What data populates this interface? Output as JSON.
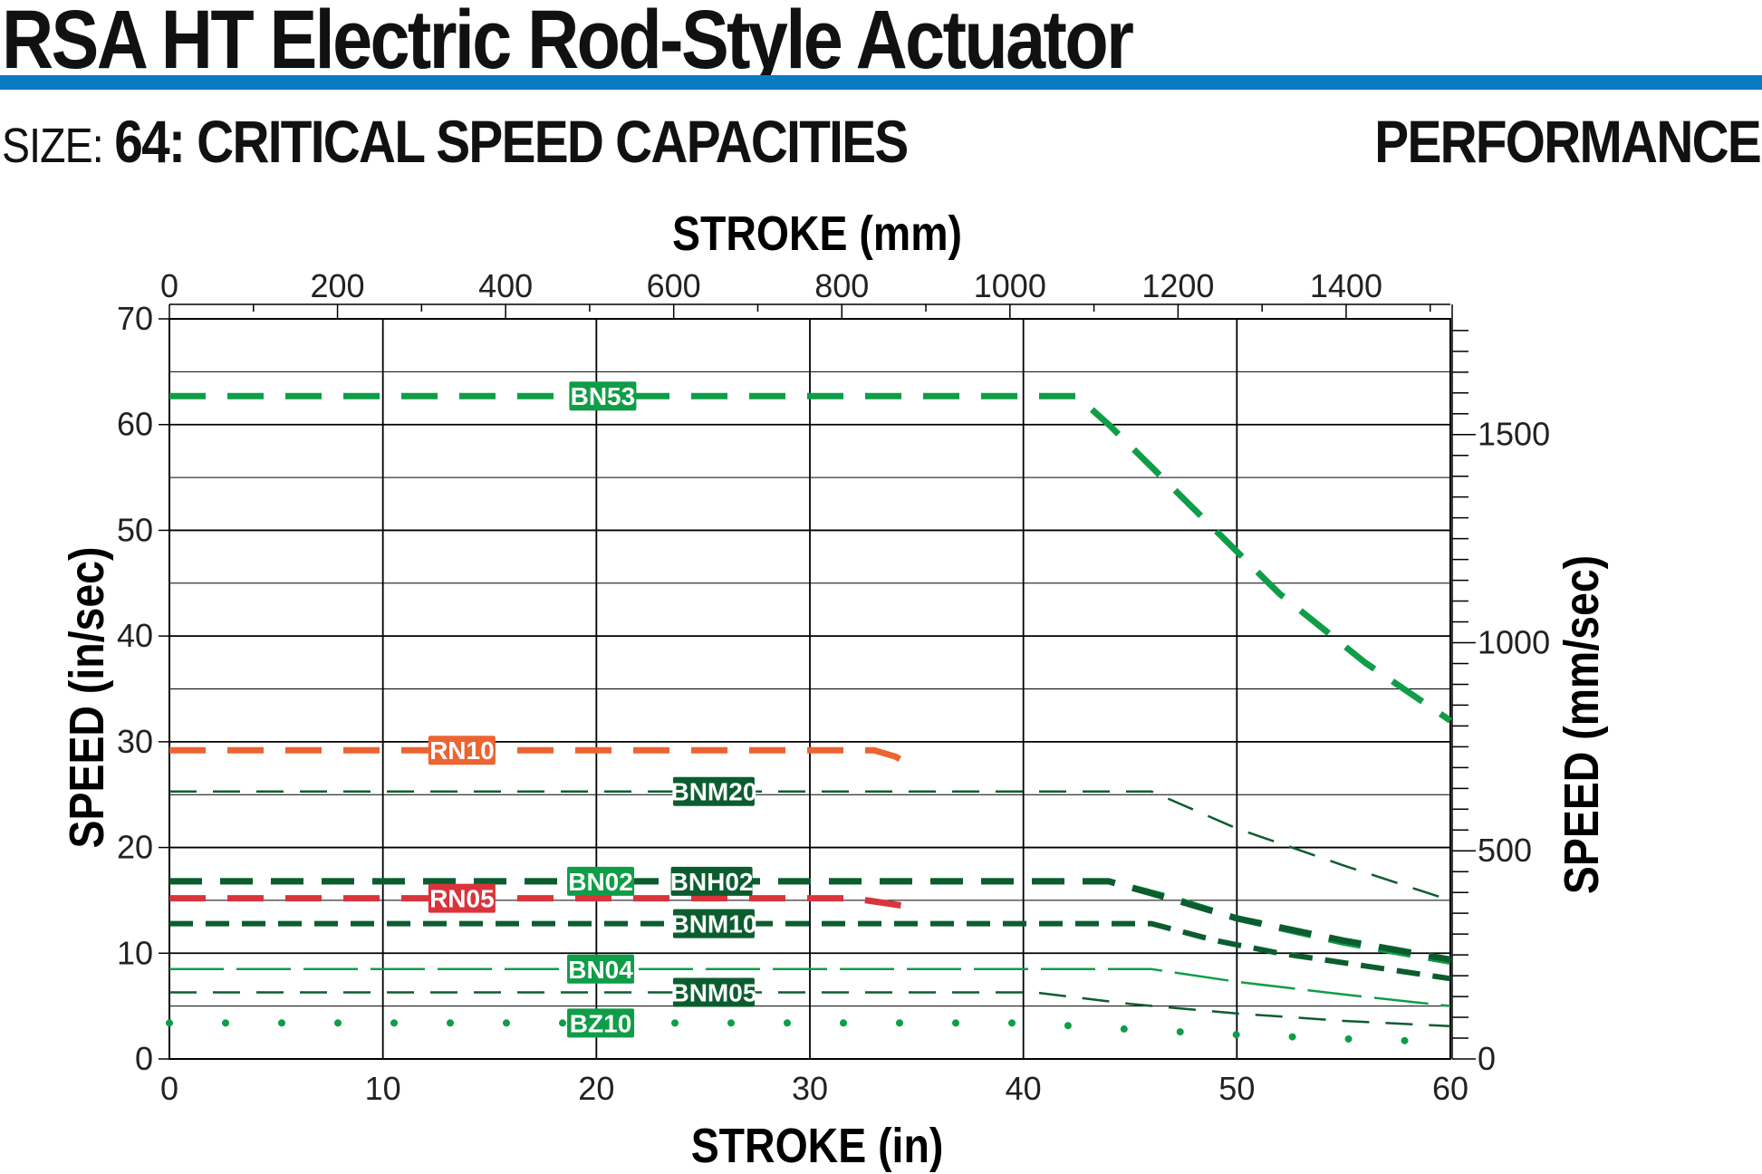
{
  "header": {
    "title": "RSA HT Electric Rod-Style Actuator",
    "size_label": "SIZE:",
    "section_title": "64: CRITICAL SPEED CAPACITIES",
    "section_tag": "PERFORMANCE"
  },
  "colors": {
    "rule": "#0a7bc2",
    "green": "#0f9d48",
    "dark_green": "#0b5d2f",
    "orange": "#ec6431",
    "red": "#d9333c"
  },
  "chart_data": {
    "type": "line",
    "title": "",
    "xlabel": "STROKE (in)",
    "x2label": "STROKE (mm)",
    "ylabel": "SPEED (in/sec)",
    "y2label": "SPEED (mm/sec)",
    "xlim": [
      0,
      60
    ],
    "ylim": [
      0,
      70
    ],
    "x2lim": [
      0,
      1524
    ],
    "y2lim": [
      0,
      1778
    ],
    "x_ticks": [
      0,
      10,
      20,
      30,
      40,
      50,
      60
    ],
    "y_ticks": [
      0,
      10,
      20,
      30,
      40,
      50,
      60,
      70
    ],
    "x2_ticks": [
      0,
      200,
      400,
      600,
      800,
      1000,
      1200,
      1400
    ],
    "y2_ticks": [
      0,
      500,
      1000,
      1500
    ],
    "grid": true,
    "series": [
      {
        "name": "BN53",
        "color": "#0f9d48",
        "dash": "long",
        "label_x": 20.3,
        "points": [
          [
            0,
            62.7
          ],
          [
            42.5,
            62.7
          ],
          [
            44,
            60
          ],
          [
            48,
            52
          ],
          [
            52,
            44
          ],
          [
            56,
            37.5
          ],
          [
            60,
            32
          ]
        ]
      },
      {
        "name": "RN10",
        "color": "#ec6431",
        "dash": "long",
        "label_x": 13.7,
        "points": [
          [
            0,
            29.2
          ],
          [
            33,
            29.2
          ],
          [
            34,
            28.6
          ],
          [
            35,
            27.5
          ]
        ]
      },
      {
        "name": "BNM20",
        "color": "#0b5d2f",
        "dash": "thin",
        "label_x": 25.5,
        "points": [
          [
            0,
            25.3
          ],
          [
            46,
            25.3
          ],
          [
            50,
            21.8
          ],
          [
            55,
            18.3
          ],
          [
            60,
            15
          ]
        ]
      },
      {
        "name": "BN02",
        "color": "#0f9d48",
        "dash": "medium",
        "label_x": 20.2,
        "points": [
          [
            0,
            16.8
          ],
          [
            44,
            16.8
          ],
          [
            47,
            15.2
          ],
          [
            50,
            13.3
          ],
          [
            55,
            11
          ],
          [
            60,
            9.2
          ]
        ]
      },
      {
        "name": "BNH02",
        "color": "#0b5d2f",
        "dash": "medium",
        "label_x": 25.4,
        "points": [
          [
            0,
            16.8
          ],
          [
            44,
            16.8
          ],
          [
            47,
            15.1
          ],
          [
            50,
            13.3
          ],
          [
            55,
            11.2
          ],
          [
            60,
            9.4
          ]
        ]
      },
      {
        "name": "RN05",
        "color": "#d9333c",
        "dash": "long",
        "label_x": 13.7,
        "points": [
          [
            0,
            15.2
          ],
          [
            32,
            15.2
          ],
          [
            35,
            14.3
          ]
        ]
      },
      {
        "name": "BNM10",
        "color": "#0b5d2f",
        "dash": "short",
        "label_x": 25.5,
        "points": [
          [
            0,
            12.8
          ],
          [
            46,
            12.8
          ],
          [
            49,
            11.2
          ],
          [
            52,
            10
          ],
          [
            56,
            8.8
          ],
          [
            60,
            7.6
          ]
        ]
      },
      {
        "name": "BN04",
        "color": "#0f9d48",
        "dash": "thinlong",
        "label_x": 20.2,
        "points": [
          [
            0,
            8.5
          ],
          [
            46,
            8.5
          ],
          [
            50,
            7.3
          ],
          [
            55,
            6.1
          ],
          [
            60,
            5
          ]
        ]
      },
      {
        "name": "BNM05",
        "color": "#0b5d2f",
        "dash": "thin",
        "label_x": 25.5,
        "points": [
          [
            0,
            6.3
          ],
          [
            40.5,
            6.3
          ],
          [
            45,
            5.2
          ],
          [
            50,
            4.3
          ],
          [
            55,
            3.6
          ],
          [
            60,
            3.1
          ]
        ]
      },
      {
        "name": "BZ10",
        "color": "#0f9d48",
        "dash": "dots",
        "label_x": 20.2,
        "points": [
          [
            0,
            3.4
          ],
          [
            40,
            3.4
          ],
          [
            45,
            2.8
          ],
          [
            50,
            2.3
          ],
          [
            55,
            1.9
          ],
          [
            60,
            1.6
          ]
        ]
      }
    ]
  }
}
